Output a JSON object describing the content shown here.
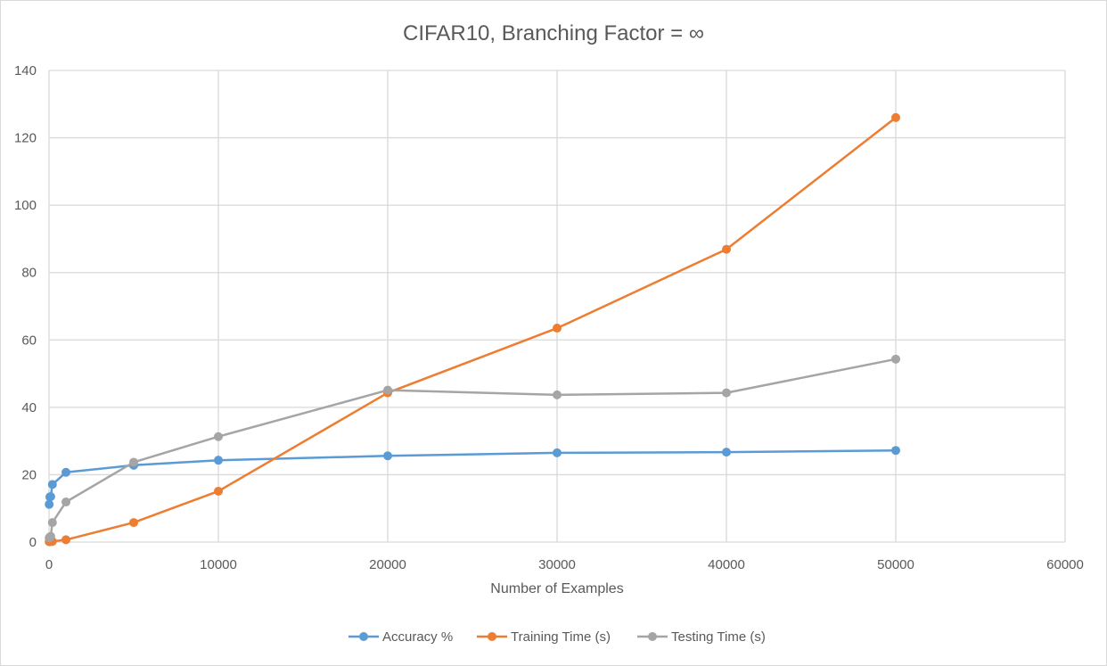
{
  "chart_data": {
    "type": "scatter",
    "title": "CIFAR10, Branching Factor = ∞",
    "xlabel": "Number of Examples",
    "ylabel": "",
    "xlim": [
      0,
      60000
    ],
    "ylim": [
      0,
      140
    ],
    "xticks": [
      0,
      10000,
      20000,
      30000,
      40000,
      50000,
      60000
    ],
    "yticks": [
      0,
      20,
      40,
      60,
      80,
      100,
      120,
      140
    ],
    "grid": true,
    "legend_position": "bottom",
    "series": [
      {
        "name": "Accuracy %",
        "color": "#5b9bd5",
        "points": [
          [
            10,
            11.2
          ],
          [
            50,
            13.4
          ],
          [
            100,
            13.5
          ],
          [
            200,
            17.1
          ],
          [
            1000,
            20.7
          ],
          [
            5000,
            22.8
          ],
          [
            10000,
            24.3
          ],
          [
            20000,
            25.6
          ],
          [
            30000,
            26.5
          ],
          [
            40000,
            26.7
          ],
          [
            50000,
            27.2
          ]
        ]
      },
      {
        "name": "Training Time (s)",
        "color": "#ed7d31",
        "points": [
          [
            10,
            0.1
          ],
          [
            50,
            0.1
          ],
          [
            100,
            0.2
          ],
          [
            200,
            0.2
          ],
          [
            1000,
            0.7
          ],
          [
            5000,
            5.8
          ],
          [
            10000,
            15.1
          ],
          [
            20000,
            44.3
          ],
          [
            30000,
            63.5
          ],
          [
            40000,
            86.9
          ],
          [
            50000,
            126.0
          ]
        ]
      },
      {
        "name": "Testing Time (s)",
        "color": "#a5a5a5",
        "points": [
          [
            10,
            1.2
          ],
          [
            50,
            1.5
          ],
          [
            100,
            1.7
          ],
          [
            200,
            5.8
          ],
          [
            1000,
            11.9
          ],
          [
            5000,
            23.7
          ],
          [
            10000,
            31.3
          ],
          [
            20000,
            45.1
          ],
          [
            30000,
            43.7
          ],
          [
            40000,
            44.3
          ],
          [
            50000,
            54.3
          ]
        ]
      }
    ]
  }
}
